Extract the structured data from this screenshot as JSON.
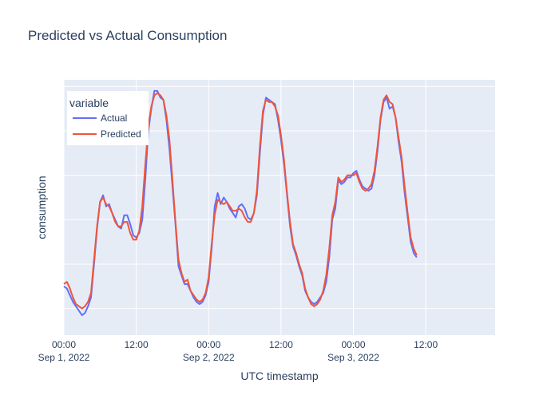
{
  "chart_data": {
    "type": "line",
    "title": "Predicted vs Actual Consumption",
    "xlabel": "UTC timestamp",
    "ylabel": "consumption",
    "x_ticks": [
      {
        "hour": 0,
        "time": "00:00",
        "date": "Sep 1, 2022"
      },
      {
        "hour": 12,
        "time": "12:00",
        "date": ""
      },
      {
        "hour": 24,
        "time": "00:00",
        "date": "Sep 2, 2022"
      },
      {
        "hour": 36,
        "time": "12:00",
        "date": ""
      },
      {
        "hour": 48,
        "time": "00:00",
        "date": "Sep 3, 2022"
      },
      {
        "hour": 60,
        "time": "12:00",
        "date": ""
      }
    ],
    "x_range_hours": [
      0,
      71.5
    ],
    "grid": true,
    "legend": {
      "title": "variable",
      "placement": "top-left"
    },
    "series": [
      {
        "name": "Actual",
        "color": "#636efa",
        "points": [
          [
            0,
            20
          ],
          [
            0.5,
            19
          ],
          [
            1,
            16
          ],
          [
            1.5,
            13
          ],
          [
            2,
            11
          ],
          [
            2.5,
            9
          ],
          [
            3,
            7
          ],
          [
            3.5,
            8
          ],
          [
            4,
            11
          ],
          [
            4.5,
            15
          ],
          [
            5,
            30
          ],
          [
            5.5,
            46
          ],
          [
            6,
            58
          ],
          [
            6.5,
            61
          ],
          [
            7,
            56
          ],
          [
            7.5,
            57
          ],
          [
            8,
            53
          ],
          [
            8.5,
            50
          ],
          [
            9,
            47
          ],
          [
            9.5,
            46
          ],
          [
            10,
            52
          ],
          [
            10.5,
            52
          ],
          [
            11,
            48
          ],
          [
            11.5,
            43
          ],
          [
            12,
            42
          ],
          [
            12.5,
            44
          ],
          [
            13,
            50
          ],
          [
            13.5,
            68
          ],
          [
            14,
            90
          ],
          [
            14.5,
            100
          ],
          [
            15,
            108
          ],
          [
            15.5,
            108
          ],
          [
            16,
            105
          ],
          [
            16.5,
            104
          ],
          [
            17,
            95
          ],
          [
            17.5,
            82
          ],
          [
            18,
            65
          ],
          [
            18.5,
            48
          ],
          [
            19,
            29
          ],
          [
            19.5,
            25
          ],
          [
            20,
            21
          ],
          [
            20.5,
            21
          ],
          [
            21,
            18
          ],
          [
            21.5,
            15
          ],
          [
            22,
            13
          ],
          [
            22.5,
            12
          ],
          [
            23,
            13
          ],
          [
            23.5,
            16
          ],
          [
            24,
            22
          ],
          [
            24.5,
            37
          ],
          [
            25,
            56
          ],
          [
            25.5,
            62
          ],
          [
            26,
            57
          ],
          [
            26.5,
            60
          ],
          [
            27,
            58
          ],
          [
            27.5,
            55
          ],
          [
            28,
            53
          ],
          [
            28.5,
            51
          ],
          [
            29,
            56
          ],
          [
            29.5,
            57
          ],
          [
            30,
            55
          ],
          [
            30.5,
            51
          ],
          [
            31,
            50
          ],
          [
            31.5,
            53
          ],
          [
            32,
            61
          ],
          [
            32.5,
            80
          ],
          [
            33,
            97
          ],
          [
            33.5,
            105
          ],
          [
            34,
            104
          ],
          [
            34.5,
            103
          ],
          [
            35,
            102
          ],
          [
            35.5,
            95
          ],
          [
            36,
            86
          ],
          [
            36.5,
            75
          ],
          [
            37,
            61
          ],
          [
            37.5,
            47
          ],
          [
            38,
            38
          ],
          [
            38.5,
            34
          ],
          [
            39,
            29
          ],
          [
            39.5,
            25
          ],
          [
            40,
            18
          ],
          [
            40.5,
            15
          ],
          [
            41,
            13
          ],
          [
            41.5,
            12
          ],
          [
            42,
            13
          ],
          [
            42.5,
            15
          ],
          [
            43,
            17
          ],
          [
            43.5,
            22
          ],
          [
            44,
            33
          ],
          [
            44.5,
            50
          ],
          [
            45,
            55
          ],
          [
            45.5,
            68
          ],
          [
            46,
            66
          ],
          [
            46.5,
            67
          ],
          [
            47,
            69
          ],
          [
            47.5,
            69
          ],
          [
            48,
            71
          ],
          [
            48.5,
            72
          ],
          [
            49,
            68
          ],
          [
            49.5,
            65
          ],
          [
            50,
            64
          ],
          [
            50.5,
            63
          ],
          [
            51,
            64
          ],
          [
            51.5,
            70
          ],
          [
            52,
            81
          ],
          [
            52.5,
            95
          ],
          [
            53,
            103
          ],
          [
            53.5,
            105
          ],
          [
            54,
            100
          ],
          [
            54.5,
            101
          ],
          [
            55,
            96
          ],
          [
            55.5,
            85
          ],
          [
            56,
            76
          ],
          [
            56.5,
            62
          ],
          [
            57,
            51
          ],
          [
            57.5,
            40
          ],
          [
            58,
            35
          ],
          [
            58.5,
            33
          ]
        ]
      },
      {
        "name": "Predicted",
        "color": "#ef553b",
        "points": [
          [
            0,
            21
          ],
          [
            0.5,
            22
          ],
          [
            1,
            19
          ],
          [
            1.5,
            15
          ],
          [
            2,
            12
          ],
          [
            2.5,
            11
          ],
          [
            3,
            10
          ],
          [
            3.5,
            11
          ],
          [
            4,
            13
          ],
          [
            4.5,
            17
          ],
          [
            5,
            32
          ],
          [
            5.5,
            47
          ],
          [
            6,
            58
          ],
          [
            6.5,
            60
          ],
          [
            7,
            57
          ],
          [
            7.5,
            56
          ],
          [
            8,
            53
          ],
          [
            8.5,
            49
          ],
          [
            9,
            47
          ],
          [
            9.5,
            47
          ],
          [
            10,
            49
          ],
          [
            10.5,
            49
          ],
          [
            11,
            44
          ],
          [
            11.5,
            41
          ],
          [
            12,
            41
          ],
          [
            12.5,
            45
          ],
          [
            13,
            56
          ],
          [
            13.5,
            75
          ],
          [
            14,
            92
          ],
          [
            14.5,
            101
          ],
          [
            15,
            106
          ],
          [
            15.5,
            107
          ],
          [
            16,
            106
          ],
          [
            16.5,
            104
          ],
          [
            17,
            97
          ],
          [
            17.5,
            86
          ],
          [
            18,
            68
          ],
          [
            18.5,
            49
          ],
          [
            19,
            32
          ],
          [
            19.5,
            26
          ],
          [
            20,
            22
          ],
          [
            20.5,
            23
          ],
          [
            21,
            18
          ],
          [
            21.5,
            16
          ],
          [
            22,
            14
          ],
          [
            22.5,
            13
          ],
          [
            23,
            14
          ],
          [
            23.5,
            17
          ],
          [
            24,
            24
          ],
          [
            24.5,
            39
          ],
          [
            25,
            52
          ],
          [
            25.5,
            59
          ],
          [
            26,
            58
          ],
          [
            26.5,
            57
          ],
          [
            27,
            58
          ],
          [
            27.5,
            56
          ],
          [
            28,
            54
          ],
          [
            28.5,
            54
          ],
          [
            29,
            55
          ],
          [
            29.5,
            54
          ],
          [
            30,
            51
          ],
          [
            30.5,
            49
          ],
          [
            31,
            49
          ],
          [
            31.5,
            53
          ],
          [
            32,
            63
          ],
          [
            32.5,
            83
          ],
          [
            33,
            99
          ],
          [
            33.5,
            104
          ],
          [
            34,
            103
          ],
          [
            34.5,
            103
          ],
          [
            35,
            101
          ],
          [
            35.5,
            97
          ],
          [
            36,
            88
          ],
          [
            36.5,
            77
          ],
          [
            37,
            62
          ],
          [
            37.5,
            49
          ],
          [
            38,
            39
          ],
          [
            38.5,
            35
          ],
          [
            39,
            30
          ],
          [
            39.5,
            26
          ],
          [
            40,
            19
          ],
          [
            40.5,
            15
          ],
          [
            41,
            12
          ],
          [
            41.5,
            11
          ],
          [
            42,
            12
          ],
          [
            42.5,
            14
          ],
          [
            43,
            18
          ],
          [
            43.5,
            25
          ],
          [
            44,
            37
          ],
          [
            44.5,
            52
          ],
          [
            45,
            58
          ],
          [
            45.5,
            69
          ],
          [
            46,
            67
          ],
          [
            46.5,
            68
          ],
          [
            47,
            70
          ],
          [
            47.5,
            70
          ],
          [
            48,
            70
          ],
          [
            48.5,
            71
          ],
          [
            49,
            67
          ],
          [
            49.5,
            64
          ],
          [
            50,
            63
          ],
          [
            50.5,
            64
          ],
          [
            51,
            66
          ],
          [
            51.5,
            72
          ],
          [
            52,
            83
          ],
          [
            52.5,
            96
          ],
          [
            53,
            104
          ],
          [
            53.5,
            106
          ],
          [
            54,
            103
          ],
          [
            54.5,
            102
          ],
          [
            55,
            96
          ],
          [
            55.5,
            87
          ],
          [
            56,
            78
          ],
          [
            56.5,
            65
          ],
          [
            57,
            53
          ],
          [
            57.5,
            42
          ],
          [
            58,
            37
          ],
          [
            58.5,
            34
          ]
        ]
      }
    ]
  }
}
